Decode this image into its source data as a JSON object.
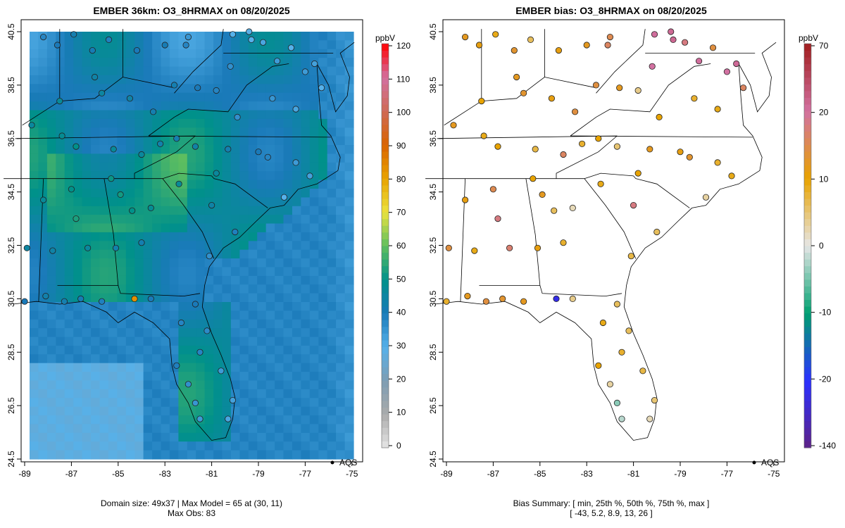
{
  "chart_data": [
    {
      "type": "heatmap",
      "title": "EMBER 36km: O3_8HRMAX on 08/20/2025",
      "colorbar_label": "ppbV",
      "colorbar_ticks": [
        "0",
        "10",
        "20",
        "30",
        "40",
        "50",
        "60",
        "70",
        "80",
        "90",
        "100",
        "110",
        "120"
      ],
      "colorbar_values": [
        0,
        10,
        20,
        30,
        40,
        50,
        60,
        70,
        80,
        90,
        100,
        110,
        120
      ],
      "colorbar_colors": [
        "#e6e6e6",
        "#ababab",
        "#7d9db3",
        "#56b1ea",
        "#1a7ab9",
        "#00918a",
        "#5fbf5f",
        "#ebe23e",
        "#e8a300",
        "#d96400",
        "#cf6a55",
        "#d271a1",
        "#ff0000"
      ],
      "caption_line1": "Domain size: 49x37 | Max Model = 65 at (30, 11)",
      "caption_line2": "Max Obs: 83",
      "legend_label": "AQS",
      "grid_cols": 37,
      "grid_rows": 49
    },
    {
      "type": "scatter",
      "title": "EMBER bias: O3_8HRMAX on 08/20/2025",
      "colorbar_label": "ppbV",
      "colorbar_ticks": [
        "-140",
        "-20",
        "-10",
        "0",
        "10",
        "20",
        "70"
      ],
      "colorbar_values": [
        -140,
        -20,
        -10,
        0,
        10,
        20,
        70
      ],
      "colorbar_colors": [
        "#5e2288",
        "#2a30ff",
        "#00a070",
        "#e6e6e6",
        "#e8a300",
        "#d271a1",
        "#a01e1e"
      ],
      "caption_line1": "Bias Summary: [ min, 25th %, 50th %, 75th %, max ]",
      "caption_line2": "[ -43,   5.2,   8.9,   13,   26 ]",
      "legend_label": "AQS"
    }
  ],
  "axes": {
    "lon_ticks": [
      "-89",
      "-87",
      "-85",
      "-83",
      "-81",
      "-79",
      "-77",
      "-75"
    ],
    "lon_values": [
      -89,
      -87,
      -85,
      -83,
      -81,
      -79,
      -77,
      -75
    ],
    "lat_ticks": [
      "24.5",
      "26.5",
      "28.5",
      "30.5",
      "32.5",
      "34.5",
      "36.5",
      "38.5",
      "40.5"
    ],
    "lat_values": [
      24.5,
      26.5,
      28.5,
      30.5,
      32.5,
      34.5,
      36.5,
      38.5,
      40.5
    ]
  },
  "stations": [
    [
      -88.2,
      40.3,
      38,
      12
    ],
    [
      -87.6,
      40.0,
      40,
      11
    ],
    [
      -86.9,
      40.4,
      42,
      9
    ],
    [
      -86.1,
      39.8,
      41,
      13
    ],
    [
      -85.4,
      40.2,
      39,
      6
    ],
    [
      -84.2,
      39.8,
      40,
      11
    ],
    [
      -83.0,
      40.0,
      41,
      12
    ],
    [
      -82.0,
      40.3,
      35,
      15
    ],
    [
      -80.1,
      40.4,
      30,
      22
    ],
    [
      -79.4,
      40.5,
      29,
      25
    ],
    [
      -78.8,
      40.1,
      32,
      18
    ],
    [
      -77.6,
      39.9,
      30,
      14
    ],
    [
      -77.0,
      39.0,
      34,
      20
    ],
    [
      -76.6,
      39.3,
      33,
      24
    ],
    [
      -76.3,
      38.4,
      30,
      16
    ],
    [
      -77.4,
      37.6,
      32,
      9
    ],
    [
      -78.4,
      38.0,
      35,
      8
    ],
    [
      -79.9,
      37.3,
      36,
      10
    ],
    [
      -80.8,
      38.3,
      38,
      4
    ],
    [
      -81.6,
      38.4,
      40,
      12
    ],
    [
      -82.6,
      38.5,
      42,
      14
    ],
    [
      -84.5,
      38.0,
      44,
      11
    ],
    [
      -85.7,
      38.2,
      45,
      13
    ],
    [
      -87.5,
      37.9,
      47,
      10
    ],
    [
      -88.7,
      37.0,
      46,
      12
    ],
    [
      -87.4,
      36.6,
      48,
      9
    ],
    [
      -86.8,
      36.2,
      50,
      10
    ],
    [
      -85.2,
      36.1,
      47,
      7
    ],
    [
      -84.0,
      35.9,
      46,
      16
    ],
    [
      -83.2,
      36.3,
      43,
      8
    ],
    [
      -82.5,
      36.5,
      42,
      10
    ],
    [
      -81.7,
      36.2,
      44,
      5
    ],
    [
      -80.3,
      36.1,
      42,
      12
    ],
    [
      -79.0,
      36.0,
      40,
      11
    ],
    [
      -78.6,
      35.8,
      38,
      13
    ],
    [
      -77.4,
      35.6,
      34,
      8
    ],
    [
      -76.8,
      35.1,
      33,
      9
    ],
    [
      -77.9,
      34.3,
      30,
      3
    ],
    [
      -80.8,
      35.2,
      46,
      10
    ],
    [
      -82.4,
      34.8,
      47,
      9
    ],
    [
      -81.0,
      34.0,
      44,
      18
    ],
    [
      -80.0,
      33.0,
      39,
      6
    ],
    [
      -81.1,
      32.1,
      36,
      7
    ],
    [
      -83.6,
      33.9,
      48,
      2
    ],
    [
      -84.4,
      33.8,
      50,
      6
    ],
    [
      -84.9,
      34.4,
      52,
      12
    ],
    [
      -85.3,
      35.0,
      51,
      10
    ],
    [
      -86.8,
      33.5,
      53,
      18
    ],
    [
      -87.0,
      34.6,
      50,
      15
    ],
    [
      -88.2,
      34.2,
      47,
      11
    ],
    [
      -88.9,
      32.4,
      45,
      14
    ],
    [
      -87.8,
      32.3,
      44,
      9
    ],
    [
      -86.3,
      32.4,
      46,
      17
    ],
    [
      -85.1,
      32.4,
      43,
      11
    ],
    [
      -84.0,
      32.6,
      42,
      8
    ],
    [
      -83.6,
      30.5,
      40,
      4
    ],
    [
      -84.3,
      30.5,
      83,
      -43
    ],
    [
      -85.7,
      30.4,
      39,
      12
    ],
    [
      -86.6,
      30.5,
      41,
      13
    ],
    [
      -87.3,
      30.4,
      42,
      14
    ],
    [
      -88.1,
      30.6,
      43,
      12
    ],
    [
      -89.0,
      30.4,
      40,
      8
    ],
    [
      -82.3,
      29.6,
      38,
      9
    ],
    [
      -81.7,
      30.3,
      40,
      6
    ],
    [
      -81.2,
      29.3,
      37,
      6
    ],
    [
      -81.5,
      28.5,
      38,
      8
    ],
    [
      -82.5,
      28.0,
      39,
      10
    ],
    [
      -82.0,
      27.3,
      36,
      3
    ],
    [
      -80.6,
      27.8,
      34,
      7
    ],
    [
      -80.1,
      26.7,
      33,
      5
    ],
    [
      -80.3,
      26.0,
      32,
      2
    ],
    [
      -81.7,
      26.6,
      35,
      -4
    ],
    [
      -81.5,
      26.0,
      34,
      -2
    ],
    [
      -86.0,
      38.8,
      44,
      12
    ],
    [
      -83.5,
      37.5,
      42,
      14
    ],
    [
      -82.1,
      40.0,
      38,
      16
    ],
    [
      -80.2,
      39.2,
      36,
      20
    ],
    [
      -78.2,
      39.4,
      34,
      22
    ],
    [
      -79.3,
      40.2,
      30,
      26
    ]
  ],
  "colors": {
    "axis": "#000000",
    "state_border": "#000000"
  }
}
